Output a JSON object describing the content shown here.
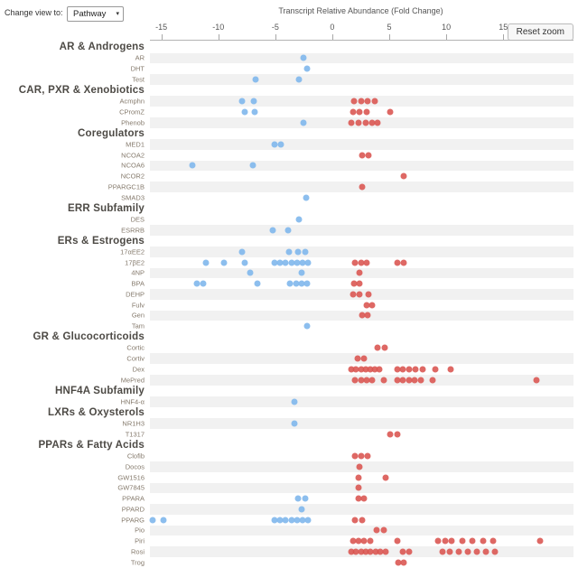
{
  "controls": {
    "view_label": "Change view to:",
    "view_value": "Pathway",
    "reset_zoom_label": "Reset zoom"
  },
  "chart_data": {
    "type": "scatter",
    "title": "Transcript Relative Abundance (Fold Change)",
    "xlabel": "Transcript Relative Abundance (Fold Change)",
    "xlim": [
      -16,
      21
    ],
    "x_ticks": [
      -15,
      -10,
      -5,
      0,
      5,
      10,
      15
    ],
    "grid": false,
    "point_colors": {
      "negative": "#7cb5ec",
      "positive": "#d9534f"
    },
    "groups": [
      {
        "name": "AR & Androgens",
        "rows": [
          {
            "label": "AR",
            "values": [
              -2.5
            ]
          },
          {
            "label": "DHT",
            "values": [
              -2.2
            ]
          },
          {
            "label": "Test",
            "values": [
              -6.7,
              -2.9
            ]
          }
        ]
      },
      {
        "name": "CAR, PXR & Xenobiotics",
        "rows": [
          {
            "label": "Acmphn",
            "values": [
              -7.9,
              -6.9,
              1.9,
              2.5,
              3.1,
              3.7
            ]
          },
          {
            "label": "CPromZ",
            "values": [
              -7.7,
              -6.8,
              1.8,
              2.4,
              3.0,
              5.1
            ]
          },
          {
            "label": "Phenob",
            "values": [
              -2.5,
              1.7,
              2.3,
              2.9,
              3.5,
              4.0
            ]
          }
        ]
      },
      {
        "name": "Coregulators",
        "rows": [
          {
            "label": "MED1",
            "values": [
              -5.1,
              -4.5
            ]
          },
          {
            "label": "NCOA2",
            "values": [
              2.6,
              3.2
            ]
          },
          {
            "label": "NCOA6",
            "values": [
              -12.3,
              -7.0
            ]
          },
          {
            "label": "NCOR2",
            "values": [
              6.3
            ]
          },
          {
            "label": "PPARGC1B",
            "values": [
              2.6
            ]
          },
          {
            "label": "SMAD3",
            "values": [
              -2.3
            ]
          }
        ]
      },
      {
        "name": "ERR Subfamily",
        "rows": [
          {
            "label": "DES",
            "values": [
              -2.9
            ]
          },
          {
            "label": "ESRRB",
            "values": [
              -5.2,
              -3.9
            ]
          }
        ]
      },
      {
        "name": "ERs & Estrogens",
        "rows": [
          {
            "label": "17αEE2",
            "values": [
              -7.9,
              -3.8,
              -3.0,
              -2.4
            ]
          },
          {
            "label": "17βE2",
            "values": [
              -11.1,
              -9.5,
              -7.7,
              -5.1,
              -4.6,
              -4.1,
              -3.6,
              -3.1,
              -2.6,
              -2.1,
              2.0,
              2.5,
              3.0,
              5.7,
              6.3
            ]
          },
          {
            "label": "4NP",
            "values": [
              -7.2,
              -2.7,
              2.4
            ]
          },
          {
            "label": "BPA",
            "values": [
              -11.9,
              -11.3,
              -6.6,
              -3.7,
              -3.2,
              -2.7,
              -2.2,
              1.9,
              2.4
            ]
          },
          {
            "label": "DEHP",
            "values": [
              1.8,
              2.4,
              3.2
            ]
          },
          {
            "label": "Fulv",
            "values": [
              3.0,
              3.5
            ]
          },
          {
            "label": "Gen",
            "values": [
              2.6,
              3.1
            ]
          },
          {
            "label": "Tam",
            "values": [
              -2.2
            ]
          }
        ]
      },
      {
        "name": "GR & Glucocorticoids",
        "rows": [
          {
            "label": "Cortic",
            "values": [
              4.0,
              4.6
            ]
          },
          {
            "label": "Cortiv",
            "values": [
              2.2,
              2.8
            ]
          },
          {
            "label": "Dex",
            "values": [
              1.7,
              2.1,
              2.5,
              2.9,
              3.3,
              3.7,
              4.1,
              5.7,
              6.2,
              6.7,
              7.3,
              7.9,
              9.0,
              10.4
            ]
          },
          {
            "label": "MePred",
            "values": [
              2.0,
              2.5,
              3.0,
              3.5,
              4.5,
              5.7,
              6.2,
              6.7,
              7.2,
              7.8,
              8.8,
              17.9
            ]
          }
        ]
      },
      {
        "name": "HNF4A Subfamily",
        "rows": [
          {
            "label": "HNF4-α",
            "values": [
              -3.3
            ]
          }
        ]
      },
      {
        "name": "LXRs & Oxysterols",
        "rows": [
          {
            "label": "NR1H3",
            "values": [
              -3.3
            ]
          },
          {
            "label": "T1317",
            "values": [
              5.1,
              5.7
            ]
          }
        ]
      },
      {
        "name": "PPARs & Fatty Acids",
        "rows": [
          {
            "label": "Clofib",
            "values": [
              2.0,
              2.5,
              3.1
            ]
          },
          {
            "label": "Docos",
            "values": [
              2.4
            ]
          },
          {
            "label": "GW1516",
            "values": [
              2.3,
              4.7
            ]
          },
          {
            "label": "GW7845",
            "values": [
              2.3
            ]
          },
          {
            "label": "PPARA",
            "values": [
              -3.0,
              -2.4,
              2.3,
              2.8
            ]
          },
          {
            "label": "PPARD",
            "values": [
              -2.7
            ]
          },
          {
            "label": "PPARG",
            "values": [
              -15.8,
              -14.8,
              -5.1,
              -4.6,
              -4.1,
              -3.6,
              -3.1,
              -2.6,
              -2.1,
              2.0,
              2.6
            ]
          },
          {
            "label": "Pio",
            "values": [
              3.9,
              4.5
            ]
          },
          {
            "label": "Piri",
            "values": [
              1.8,
              2.3,
              2.8,
              3.3,
              5.7,
              9.3,
              9.9,
              10.5,
              11.4,
              12.3,
              13.2,
              14.1,
              18.2
            ]
          },
          {
            "label": "Rosi",
            "values": [
              1.7,
              2.1,
              2.5,
              2.9,
              3.3,
              3.8,
              4.2,
              4.7,
              6.2,
              6.7,
              9.7,
              10.3,
              11.1,
              11.9,
              12.7,
              13.5,
              14.3
            ]
          },
          {
            "label": "Trog",
            "values": [
              5.8,
              6.3
            ]
          }
        ]
      }
    ]
  }
}
